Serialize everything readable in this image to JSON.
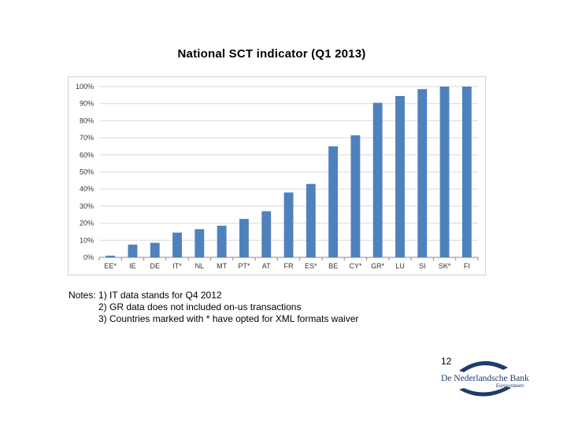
{
  "page": {
    "page_number": "12"
  },
  "chart_data": {
    "type": "bar",
    "title": "National SCT indicator (Q1 2013)",
    "xlabel": "",
    "ylabel": "",
    "ylim": [
      0,
      100
    ],
    "yticks": [
      "0%",
      "10%",
      "20%",
      "30%",
      "40%",
      "50%",
      "60%",
      "70%",
      "80%",
      "90%",
      "100%"
    ],
    "grid": true,
    "categories": [
      "EE*",
      "IE",
      "DE",
      "IT*",
      "NL",
      "MT",
      "PT*",
      "AT",
      "FR",
      "ES*",
      "BE",
      "CY*",
      "GR*",
      "LU",
      "SI",
      "SK*",
      "FI"
    ],
    "values": [
      1,
      7.5,
      8.5,
      14.5,
      16.5,
      18.5,
      22.5,
      27,
      38,
      43,
      65,
      71.5,
      90.5,
      94.5,
      98.5,
      100,
      100
    ],
    "bar_color": "#4f81bd",
    "grid_color": "#d9d9d9"
  },
  "notes": {
    "prefix": "Notes:",
    "items": [
      "1) IT data stands for Q4 2012",
      "2) GR  data does not included on-us transactions",
      "3) Countries marked with * have opted for XML formats waiver"
    ]
  },
  "logo": {
    "name": "De Nederlandsche Bank",
    "subtitle": "Eurosysteem",
    "color": "#1f3b6b"
  }
}
